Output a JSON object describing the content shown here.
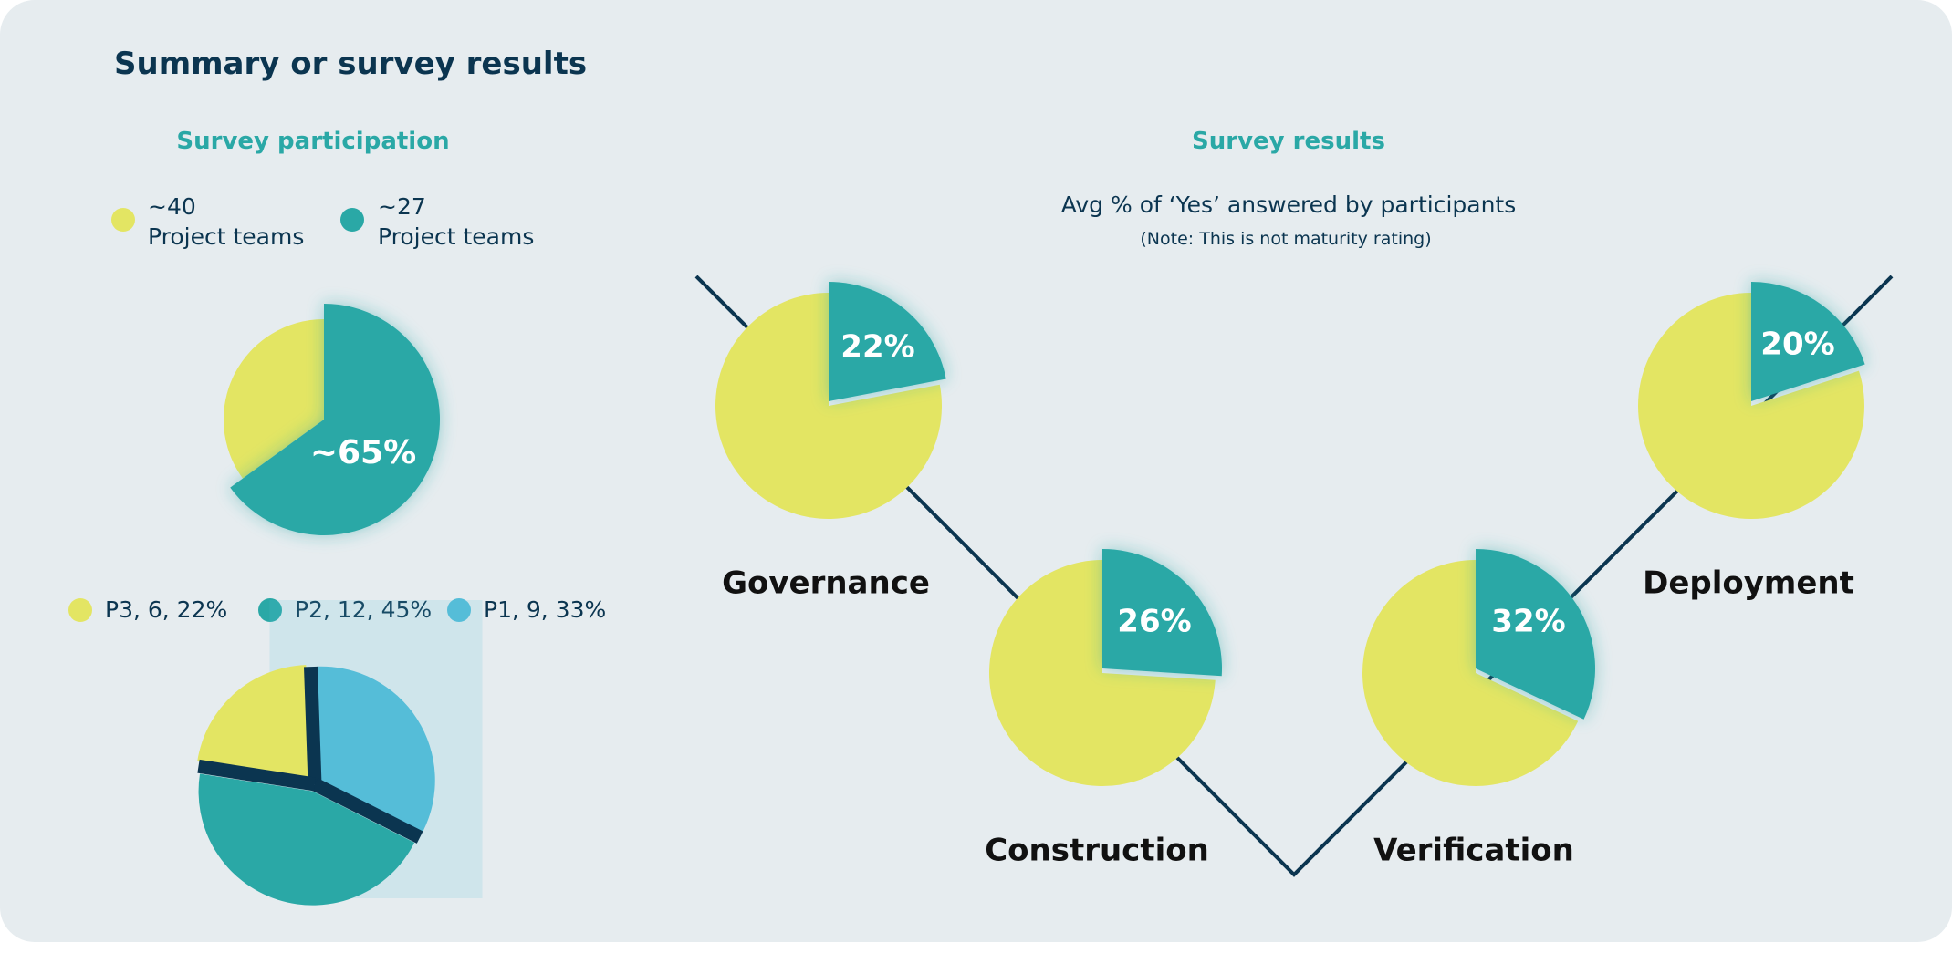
{
  "page": {
    "title": "Summary or survey results"
  },
  "colors": {
    "background": "#e6ecef",
    "yellow": "#e3e563",
    "teal": "#2aa8a6",
    "light_blue": "#55bdd8",
    "navy": "#0b3550"
  },
  "participation": {
    "heading": "Survey participation",
    "legend": [
      {
        "value": "~40",
        "label": "Project teams",
        "color": "#e3e563"
      },
      {
        "value": "~27",
        "label": "Project teams",
        "color": "#2aa8a6"
      }
    ],
    "priority_legend": [
      {
        "label": "P3, 6, 22%",
        "color": "#e3e563"
      },
      {
        "label": "P2, 12, 45%",
        "color": "#2aa8a6"
      },
      {
        "label": "P1, 9, 33%",
        "color": "#55bdd8"
      }
    ]
  },
  "results": {
    "heading": "Survey results",
    "subtitle": "Avg % of ‘Yes’ answered by participants",
    "note": "(Note: This is not maturity rating)"
  },
  "chart_data": [
    {
      "type": "pie",
      "series": [
        {
          "value": 35,
          "color": "#e3e563"
        },
        {
          "value": 65,
          "color": "#2aa8a6",
          "label": "~65%"
        }
      ]
    },
    {
      "type": "pie",
      "series": [
        {
          "name": "P1",
          "count": 9,
          "value": 33,
          "color": "#55bdd8"
        },
        {
          "name": "P2",
          "count": 12,
          "value": 45,
          "color": "#2aa8a6"
        },
        {
          "name": "P3",
          "count": 6,
          "value": 22,
          "color": "#e3e563"
        }
      ]
    },
    {
      "type": "pie",
      "stages": [
        {
          "name": "Governance",
          "yes_percent": 22,
          "label": "22%"
        },
        {
          "name": "Construction",
          "yes_percent": 26,
          "label": "26%"
        },
        {
          "name": "Verification",
          "yes_percent": 32,
          "label": "32%"
        },
        {
          "name": "Deployment",
          "yes_percent": 20,
          "label": "20%"
        }
      ]
    }
  ]
}
